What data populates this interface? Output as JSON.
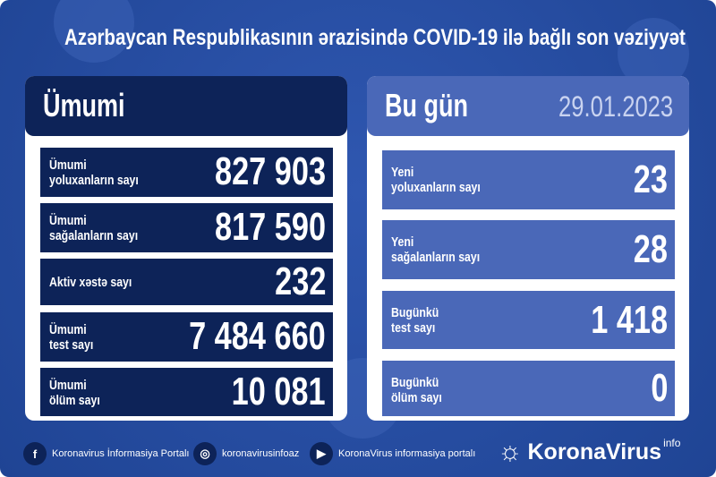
{
  "title": "Azərbaycan Respublikasının ərazisində COVID-19 ilə bağlı son vəziyyət",
  "total": {
    "label": "Ümumi",
    "rows": [
      {
        "line1": "Ümumi",
        "line2": "yoluxanların sayı",
        "value": "827 903"
      },
      {
        "line1": "Ümumi",
        "line2": "sağalanların sayı",
        "value": "817 590"
      },
      {
        "line1": "Aktiv xəstə sayı",
        "line2": "",
        "value": "232"
      },
      {
        "line1": "Ümumi",
        "line2": "test sayı",
        "value": "7 484 660"
      },
      {
        "line1": "Ümumi",
        "line2": "ölüm sayı",
        "value": "10 081"
      }
    ]
  },
  "today": {
    "label": "Bu gün",
    "date": "29.01.2023",
    "rows": [
      {
        "line1": "Yeni",
        "line2": "yoluxanların sayı",
        "value": "23"
      },
      {
        "line1": "Yeni",
        "line2": "sağalanların sayı",
        "value": "28"
      },
      {
        "line1": "Bugünkü",
        "line2": "test sayı",
        "value": "1 418"
      },
      {
        "line1": "Bugünkü",
        "line2": "ölüm sayı",
        "value": "0"
      }
    ]
  },
  "footer": {
    "facebook": "Koronavirus İnformasiya Portalı",
    "instagram": "koronavirusinfoaz",
    "youtube": "KoronaVirus informasiya portalı",
    "brand": "KoronaVirus",
    "brand_sup": "info"
  },
  "colors": {
    "background": "#2a4ea0",
    "navy": "#0d2358",
    "light_blue": "#4a68b8"
  }
}
